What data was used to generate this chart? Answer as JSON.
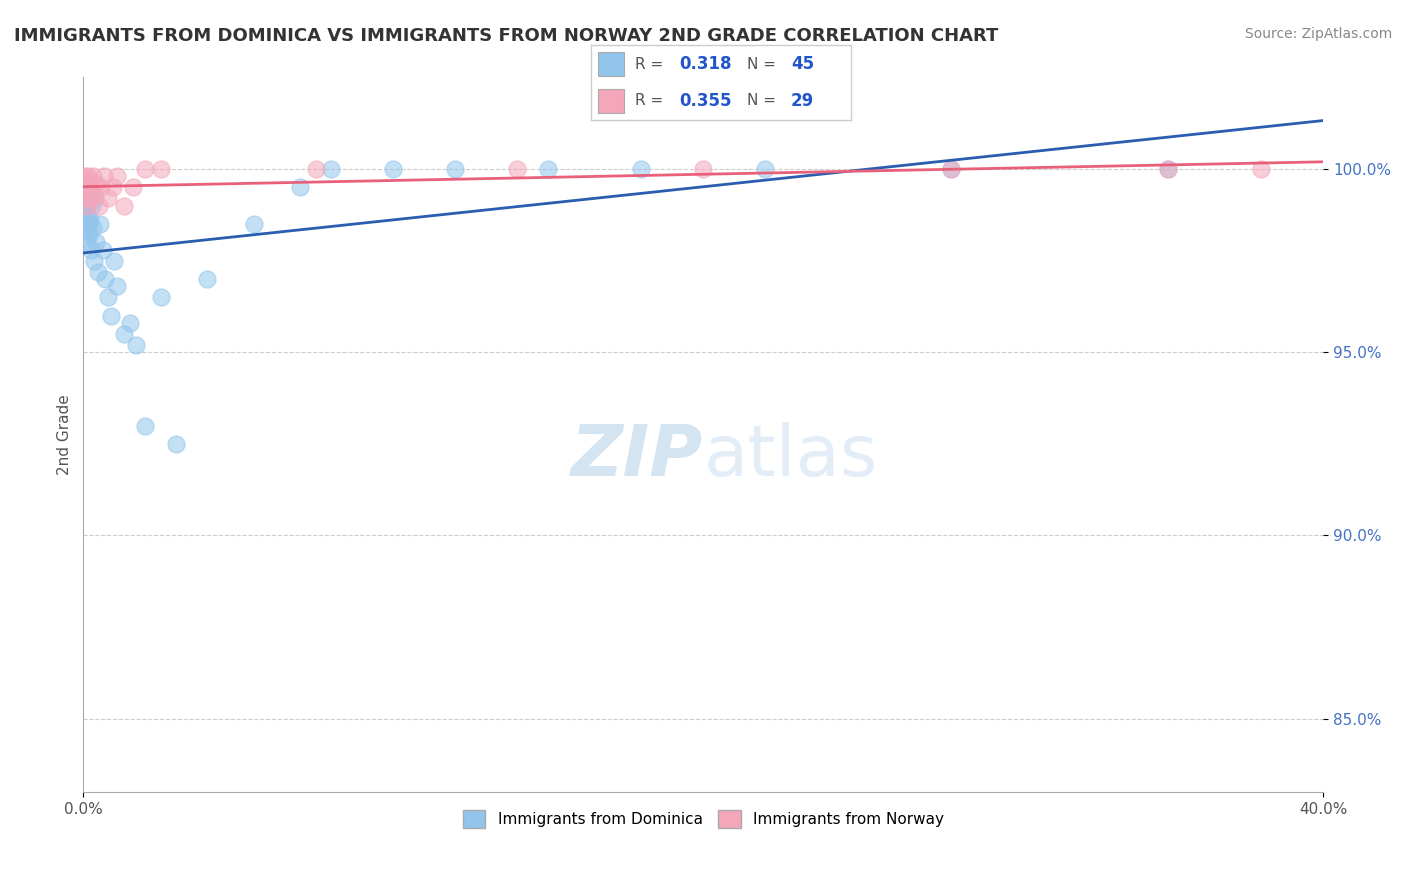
{
  "title": "IMMIGRANTS FROM DOMINICA VS IMMIGRANTS FROM NORWAY 2ND GRADE CORRELATION CHART",
  "source": "Source: ZipAtlas.com",
  "ylabel": "2nd Grade",
  "xlim": [
    0.0,
    40.0
  ],
  "ylim": [
    83.0,
    102.5
  ],
  "y_ticks": [
    85.0,
    90.0,
    95.0,
    100.0
  ],
  "legend_r1": "0.318",
  "legend_n1": "45",
  "legend_r2": "0.355",
  "legend_n2": "29",
  "dominica_color": "#92C5EC",
  "norway_color": "#F4A6BA",
  "dominica_line_color": "#2A5DB0",
  "norway_line_color": "#E8607A",
  "watermark_color": "#D6EAF8",
  "background_color": "#ffffff",
  "dominica_x": [
    0.05,
    0.08,
    0.09,
    0.1,
    0.11,
    0.12,
    0.13,
    0.14,
    0.15,
    0.16,
    0.17,
    0.18,
    0.2,
    0.22,
    0.25,
    0.28,
    0.3,
    0.35,
    0.38,
    0.42,
    0.48,
    0.55,
    0.62,
    0.7,
    0.8,
    0.9,
    1.0,
    1.1,
    1.3,
    1.5,
    1.7,
    2.0,
    2.5,
    3.0,
    4.0,
    5.5,
    7.0,
    8.0,
    10.0,
    12.0,
    15.0,
    18.0,
    22.0,
    28.0,
    35.0
  ],
  "dominica_y": [
    98.5,
    99.2,
    98.8,
    99.0,
    98.3,
    99.5,
    98.0,
    99.3,
    98.7,
    99.1,
    98.5,
    98.2,
    99.4,
    98.6,
    97.8,
    99.0,
    98.4,
    97.5,
    99.2,
    98.0,
    97.2,
    98.5,
    97.8,
    97.0,
    96.5,
    96.0,
    97.5,
    96.8,
    95.5,
    95.8,
    95.2,
    93.0,
    96.5,
    92.5,
    97.0,
    98.5,
    99.5,
    100.0,
    100.0,
    100.0,
    100.0,
    100.0,
    100.0,
    100.0,
    100.0
  ],
  "norway_x": [
    0.05,
    0.07,
    0.09,
    0.11,
    0.13,
    0.15,
    0.17,
    0.19,
    0.22,
    0.26,
    0.3,
    0.36,
    0.42,
    0.5,
    0.58,
    0.68,
    0.8,
    0.95,
    1.1,
    1.3,
    1.6,
    2.0,
    2.5,
    7.5,
    14.0,
    20.0,
    28.0,
    35.0,
    38.0
  ],
  "norway_y": [
    99.5,
    99.8,
    99.2,
    99.6,
    99.0,
    99.8,
    99.4,
    99.7,
    99.2,
    99.5,
    99.8,
    99.3,
    99.6,
    99.0,
    99.5,
    99.8,
    99.2,
    99.5,
    99.8,
    99.0,
    99.5,
    100.0,
    100.0,
    100.0,
    100.0,
    100.0,
    100.0,
    100.0,
    100.0
  ]
}
